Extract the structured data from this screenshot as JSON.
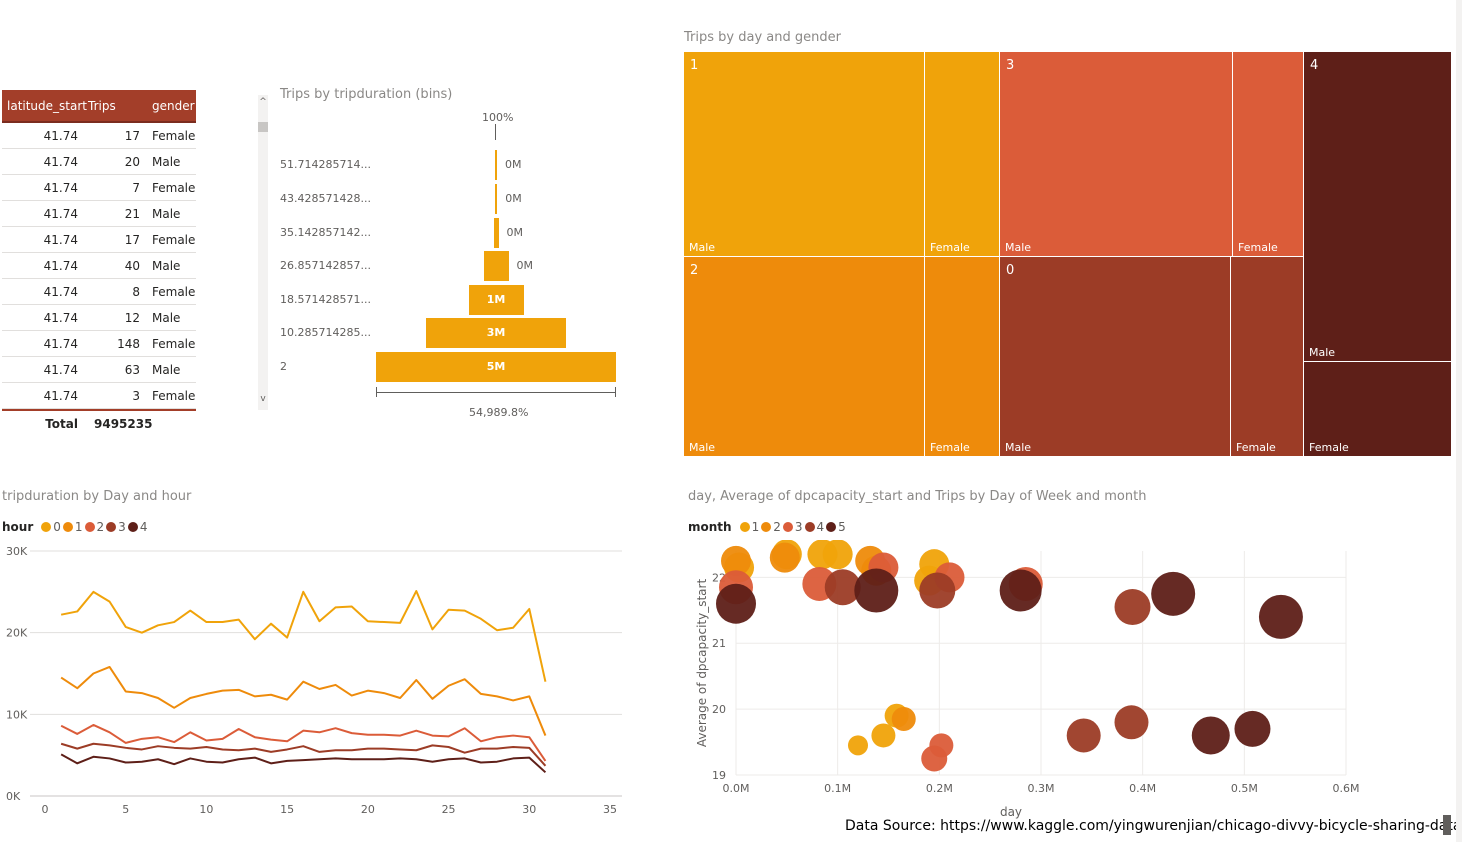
{
  "table": {
    "headers": [
      "latitude_start",
      "Trips",
      "gender"
    ],
    "rows": [
      [
        "41.74",
        "17",
        "Female"
      ],
      [
        "41.74",
        "20",
        "Male"
      ],
      [
        "41.74",
        "7",
        "Female"
      ],
      [
        "41.74",
        "21",
        "Male"
      ],
      [
        "41.74",
        "17",
        "Female"
      ],
      [
        "41.74",
        "40",
        "Male"
      ],
      [
        "41.74",
        "8",
        "Female"
      ],
      [
        "41.74",
        "12",
        "Male"
      ],
      [
        "41.74",
        "148",
        "Female"
      ],
      [
        "41.74",
        "63",
        "Male"
      ],
      [
        "41.74",
        "3",
        "Female"
      ]
    ],
    "total_label": "Total",
    "total_value": "9495235"
  },
  "funnel": {
    "title": "Trips by tripduration (bins)",
    "top_label": "100%",
    "bottom_label": "54,989.8%"
  },
  "treemap": {
    "title": "Trips by day and gender",
    "colors": {
      "1": "#f0a30a",
      "2": "#ee8b0b",
      "3": "#db5c39",
      "0": "#9c3c26",
      "4": "#5e1f18"
    }
  },
  "line_chart": {
    "title": "tripduration by Day and hour",
    "legend_title": "hour",
    "y_ticks": [
      "30K",
      "20K",
      "10K",
      "0K"
    ],
    "x_ticks": [
      "0",
      "5",
      "10",
      "15",
      "20",
      "25",
      "30",
      "35"
    ]
  },
  "scatter_chart": {
    "title": "day, Average of dpcapacity_start and Trips by Day of Week and month",
    "legend_title": "month",
    "ylabel": "Average of dpcapacity_start",
    "xlabel": "day",
    "y_ticks": [
      "22",
      "21",
      "20",
      "19"
    ],
    "x_ticks": [
      "0.0M",
      "0.1M",
      "0.2M",
      "0.3M",
      "0.4M",
      "0.5M",
      "0.6M"
    ]
  },
  "footer": {
    "source": "Data Source: https://www.kaggle.com/yingwurenjian/chicago-divvy-bicycle-sharing-data"
  },
  "chart_data": [
    {
      "type": "bar",
      "title": "Trips by tripduration (bins)",
      "categories": [
        "51.714285714...",
        "43.428571428...",
        "35.142857142...",
        "26.857142857...",
        "18.571428571...",
        "10.285714285...",
        "2"
      ],
      "values": [
        0.02,
        0.05,
        0.1,
        0.5,
        1.1,
        2.8,
        4.8
      ],
      "labels": [
        "0M",
        "0M",
        "0M",
        "0M",
        "1M",
        "3M",
        "5M"
      ],
      "unit": "M"
    },
    {
      "type": "heatmap",
      "title": "Trips by day and gender",
      "groups": [
        {
          "day": "1",
          "color": "#f0a30a",
          "cells": [
            {
              "label": "Male",
              "share": 0.78
            },
            {
              "label": "Female",
              "share": 0.22
            }
          ]
        },
        {
          "day": "2",
          "color": "#ee8b0b",
          "cells": [
            {
              "label": "Male",
              "share": 0.78
            },
            {
              "label": "Female",
              "share": 0.22
            }
          ]
        },
        {
          "day": "3",
          "color": "#db5c39",
          "cells": [
            {
              "label": "Male",
              "share": 0.77
            },
            {
              "label": "Female",
              "share": 0.23
            }
          ]
        },
        {
          "day": "0",
          "color": "#9c3c26",
          "cells": [
            {
              "label": "Male",
              "share": 0.76
            },
            {
              "label": "Female",
              "share": 0.24
            }
          ]
        },
        {
          "day": "4",
          "color": "#5e1f18",
          "cells": [
            {
              "label": "Male",
              "share": 0.75
            },
            {
              "label": "Female",
              "share": 0.25
            }
          ]
        }
      ]
    },
    {
      "type": "line",
      "title": "tripduration by Day and hour",
      "xlim": [
        0,
        35
      ],
      "ylim": [
        0,
        30000
      ],
      "x": [
        1,
        2,
        3,
        4,
        5,
        6,
        7,
        8,
        9,
        10,
        11,
        12,
        13,
        14,
        15,
        16,
        17,
        18,
        19,
        20,
        21,
        22,
        23,
        24,
        25,
        26,
        27,
        28,
        29,
        30,
        31
      ],
      "series": [
        {
          "name": "0",
          "color": "#f0a30a",
          "values": [
            22200,
            22600,
            25000,
            23800,
            20700,
            20000,
            20900,
            21300,
            22700,
            21300,
            21300,
            21600,
            19200,
            21100,
            19400,
            25000,
            21400,
            23100,
            23200,
            21400,
            21300,
            21200,
            25100,
            20400,
            22800,
            22700,
            21700,
            20300,
            20600,
            22900,
            14000
          ]
        },
        {
          "name": "1",
          "color": "#ee8b0b",
          "values": [
            14500,
            13200,
            15000,
            15800,
            12800,
            12600,
            12000,
            10800,
            12000,
            12500,
            12900,
            13000,
            12200,
            12400,
            11800,
            14000,
            13100,
            13600,
            12300,
            12900,
            12600,
            12000,
            14200,
            11900,
            13500,
            14300,
            12500,
            12200,
            11700,
            12200,
            7400
          ]
        },
        {
          "name": "2",
          "color": "#db5c39",
          "values": [
            8600,
            7600,
            8700,
            7800,
            6500,
            7000,
            7200,
            6600,
            7800,
            6800,
            7000,
            8200,
            7200,
            6900,
            6700,
            8000,
            7800,
            8300,
            7700,
            7500,
            7500,
            7400,
            8000,
            7400,
            7300,
            8300,
            6700,
            7200,
            7400,
            7200,
            4300
          ]
        },
        {
          "name": "3",
          "color": "#9c3c26",
          "values": [
            6400,
            5800,
            6400,
            6200,
            5900,
            5700,
            6100,
            5900,
            5800,
            6000,
            5700,
            5600,
            5800,
            5400,
            5700,
            6100,
            5400,
            5600,
            5600,
            5800,
            5800,
            5700,
            5600,
            6200,
            6000,
            5300,
            5800,
            5800,
            6000,
            5900,
            3700
          ]
        },
        {
          "name": "4",
          "color": "#5e1f18",
          "values": [
            5100,
            4000,
            4800,
            4600,
            4100,
            4200,
            4500,
            3900,
            4600,
            4200,
            4100,
            4500,
            4700,
            4000,
            4300,
            4400,
            4500,
            4600,
            4500,
            4500,
            4500,
            4600,
            4500,
            4200,
            4500,
            4600,
            4100,
            4200,
            4600,
            4700,
            2900
          ]
        }
      ]
    },
    {
      "type": "scatter",
      "title": "day, Average of dpcapacity_start and Trips by Day of Week and month",
      "xlabel": "day",
      "ylabel": "Average of dpcapacity_start",
      "xlim": [
        0,
        600000
      ],
      "ylim": [
        19,
        22.4
      ],
      "series": [
        {
          "name": "1",
          "color": "#f0a30a",
          "points": [
            [
              3000,
              22.15,
              15
            ],
            [
              50000,
              22.35,
              15
            ],
            [
              85000,
              22.35,
              15
            ],
            [
              100000,
              22.35,
              15
            ],
            [
              190000,
              21.95,
              15
            ],
            [
              195000,
              22.2,
              15
            ],
            [
              120000,
              19.45,
              10
            ],
            [
              145000,
              19.6,
              12
            ],
            [
              158000,
              19.9,
              12
            ]
          ]
        },
        {
          "name": "2",
          "color": "#ee8b0b",
          "points": [
            [
              0,
              22.25,
              15
            ],
            [
              48000,
              22.3,
              15
            ],
            [
              132000,
              22.25,
              15
            ],
            [
              138000,
              22.1,
              15
            ],
            [
              165000,
              19.85,
              12
            ]
          ]
        },
        {
          "name": "3",
          "color": "#db5c39",
          "points": [
            [
              0,
              21.85,
              17
            ],
            [
              82000,
              21.9,
              17
            ],
            [
              210000,
              22.0,
              15
            ],
            [
              285000,
              21.9,
              17
            ],
            [
              195000,
              19.25,
              13
            ],
            [
              202000,
              19.45,
              12
            ],
            [
              145000,
              22.15,
              15
            ]
          ]
        },
        {
          "name": "4",
          "color": "#9c3c26",
          "points": [
            [
              105000,
              21.85,
              18
            ],
            [
              198000,
              21.8,
              18
            ],
            [
              390000,
              21.55,
              18
            ],
            [
              342000,
              19.6,
              17
            ],
            [
              389000,
              19.8,
              17
            ]
          ]
        },
        {
          "name": "5",
          "color": "#5e1f18",
          "points": [
            [
              0,
              21.6,
              20
            ],
            [
              138000,
              21.8,
              22
            ],
            [
              280000,
              21.8,
              21
            ],
            [
              430000,
              21.75,
              22
            ],
            [
              536000,
              21.4,
              22
            ],
            [
              467000,
              19.6,
              19
            ],
            [
              508000,
              19.7,
              18
            ]
          ]
        }
      ]
    }
  ]
}
